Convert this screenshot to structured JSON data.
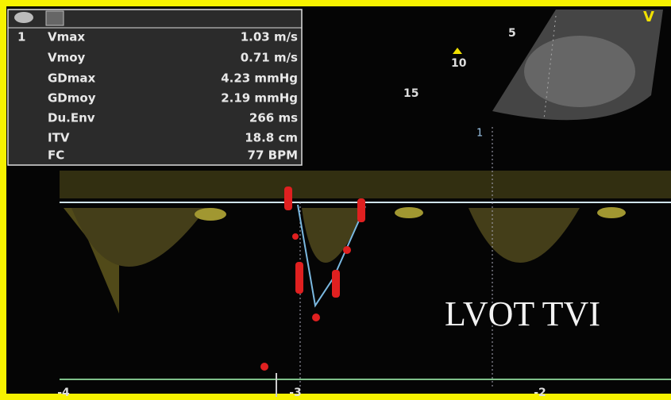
{
  "measurements": {
    "index": "1",
    "rows": [
      {
        "label": "Vmax",
        "value": "1.03 m/s"
      },
      {
        "label": "Vmoy",
        "value": "0.71 m/s"
      },
      {
        "label": "GDmax",
        "value": "4.23 mmHg"
      },
      {
        "label": "GDmoy",
        "value": "2.19 mmHg"
      },
      {
        "label": "Du.Env",
        "value": "266 ms"
      },
      {
        "label": "ITV",
        "value": "18.8 cm"
      },
      {
        "label": "FC",
        "value": "77 BPM"
      }
    ]
  },
  "sector": {
    "depths": [
      "5",
      "10",
      "15"
    ],
    "marker": "V"
  },
  "cursor_label": "1",
  "annotation": "LVOT TVI",
  "time_axis": {
    "labels": [
      "-4",
      "-3",
      "-2"
    ]
  }
}
